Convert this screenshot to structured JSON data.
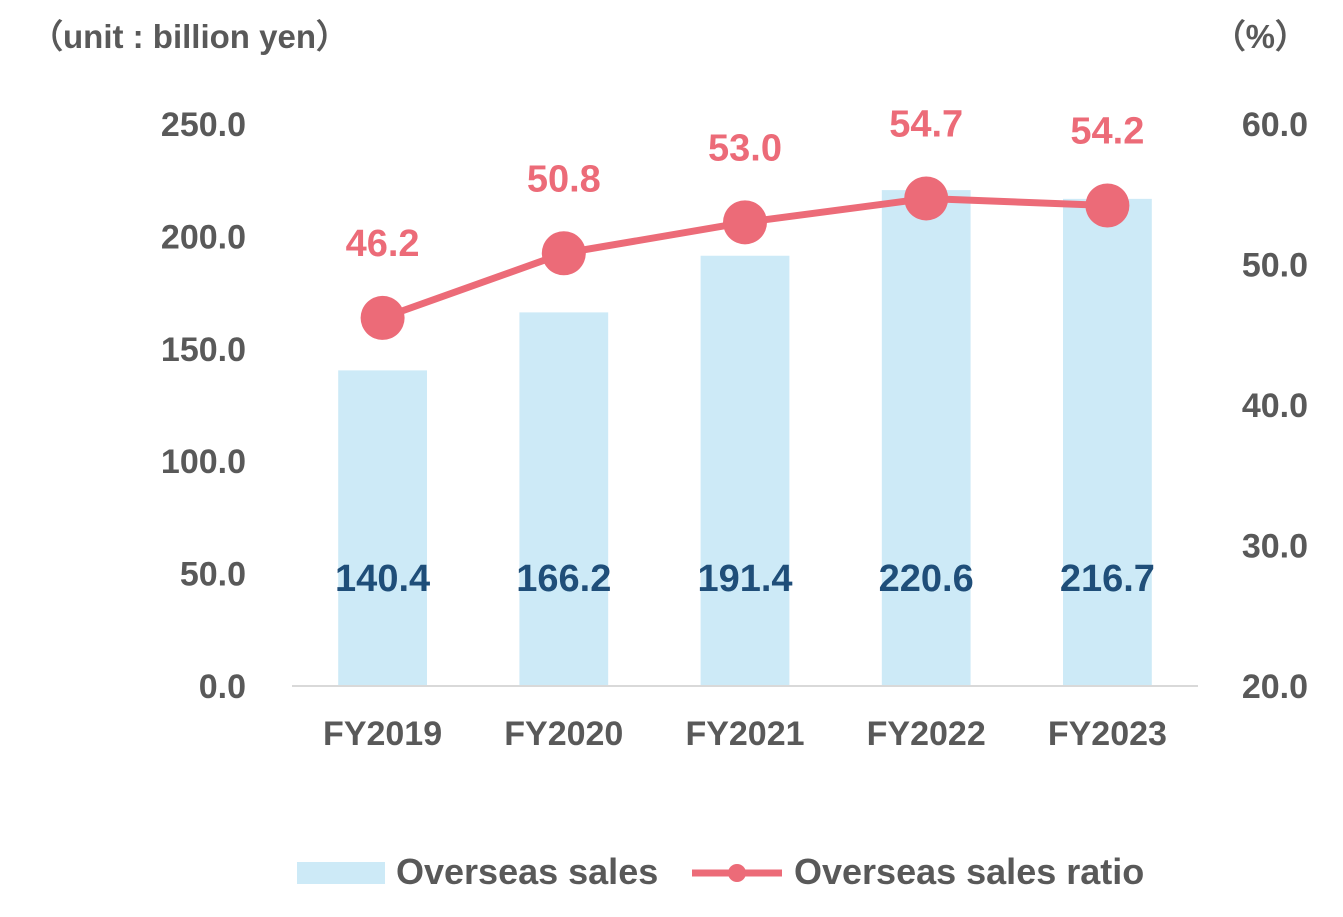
{
  "chart_data": {
    "type": "bar",
    "categories": [
      "FY2019",
      "FY2020",
      "FY2021",
      "FY2022",
      "FY2023"
    ],
    "series": [
      {
        "name": "Overseas sales",
        "type": "bar",
        "axis": "left",
        "color": "#cdeaf7",
        "label_color": "#1f4e79",
        "values": [
          140.4,
          166.2,
          191.4,
          220.6,
          216.7
        ],
        "labels": [
          "140.4",
          "166.2",
          "191.4",
          "220.6",
          "216.7"
        ]
      },
      {
        "name": "Overseas sales ratio",
        "type": "line",
        "axis": "right",
        "color": "#ec6b78",
        "values": [
          46.2,
          50.8,
          53.0,
          54.7,
          54.2
        ],
        "labels": [
          "46.2",
          "50.8",
          "53.0",
          "54.7",
          "54.2"
        ]
      }
    ],
    "left_axis": {
      "unit_label": "（unit : billion yen）",
      "ylim": [
        0,
        250
      ],
      "ticks": [
        "0.0",
        "50.0",
        "100.0",
        "150.0",
        "200.0",
        "250.0"
      ],
      "tick_values": [
        0,
        50,
        100,
        150,
        200,
        250
      ]
    },
    "right_axis": {
      "unit_label": "（%）",
      "ylim": [
        20,
        60
      ],
      "ticks": [
        "20.0",
        "30.0",
        "40.0",
        "50.0",
        "60.0"
      ],
      "tick_values": [
        20,
        30,
        40,
        50,
        60
      ]
    },
    "grid": false,
    "legend_position": "bottom"
  }
}
